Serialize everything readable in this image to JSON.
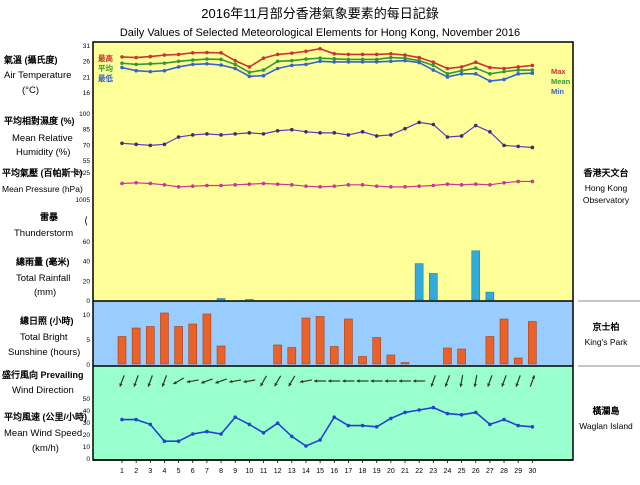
{
  "title_zh": "2016年11月部分香港氣象要素的每日記錄",
  "title_en": "Daily Values of Selected Meteorological Elements for Hong Kong, November 2016",
  "days": [
    1,
    2,
    3,
    4,
    5,
    6,
    7,
    8,
    9,
    10,
    11,
    12,
    13,
    14,
    15,
    16,
    17,
    18,
    19,
    20,
    21,
    22,
    23,
    24,
    25,
    26,
    27,
    28,
    29,
    30
  ],
  "panels": {
    "temperature": {
      "label_zh": "氣溫 (攝氏度)",
      "label_en_1": "Air Temperature",
      "label_en_2": "(°C)",
      "ticks": [
        "31",
        "26",
        "21",
        "16"
      ],
      "legend_zh_max": "最高",
      "legend_zh_mean": "平均",
      "legend_zh_min": "最低",
      "legend_en_max": "Max",
      "legend_en_mean": "Mean",
      "legend_en_min": "Min"
    },
    "humidity": {
      "label_zh": "平均相對濕度 (%)",
      "label_en_1": "Mean Relative",
      "label_en_2": "Humidity (%)",
      "ticks": [
        "100",
        "85",
        "70",
        "55"
      ]
    },
    "pressure": {
      "label_zh": "平均氣壓 (百帕斯卡)",
      "label_en": "Mean Pressure (hPa)",
      "ticks": [
        "1025",
        "1005"
      ]
    },
    "thunderstorm": {
      "label_zh": "雷暴",
      "label_en": "Thunderstorm"
    },
    "rainfall": {
      "label_zh": "總雨量 (毫米)",
      "label_en_1": "Total Rainfall",
      "label_en_2": "(mm)",
      "ticks": [
        "60",
        "40",
        "20",
        "0"
      ]
    },
    "sunshine": {
      "label_zh": "總日照 (小時)",
      "label_en_1": "Total Bright",
      "label_en_2": "Sunshine  (hours)",
      "ticks": [
        "10",
        "5",
        "0"
      ]
    },
    "wind_dir": {
      "label_zh": "盛行風向 Prevailing",
      "label_en": "Wind Direction"
    },
    "wind_speed": {
      "label_zh": "平均風速 (公里/小時)",
      "label_en_1": "Mean Wind Speed",
      "label_en_2": "(km/h)",
      "ticks": [
        "50",
        "40",
        "30",
        "20",
        "10",
        "0"
      ]
    }
  },
  "stations": {
    "hko_zh": "香港天文台",
    "hko_en_1": "Hong Kong",
    "hko_en_2": "Observatory",
    "kp_zh": "京士柏",
    "kp_en": "King's Park",
    "wi_zh": "橫瀾島",
    "wi_en": "Waglan Island"
  },
  "colors": {
    "upper_bg": "#ffff99",
    "sunshine_bg": "#99ccff",
    "wind_bg": "#99ffcc",
    "max_line": "#cc3333",
    "mean_line": "#339933",
    "min_line": "#3366cc",
    "humidity_line": "#6633cc",
    "pressure_line": "#cc3399",
    "rain_bar": "#33aadd",
    "sun_bar": "#e8622a",
    "wind_speed_line": "#2244cc"
  },
  "chart_data": [
    {
      "type": "line",
      "title": "Air Temperature (°C)",
      "x": [
        1,
        2,
        3,
        4,
        5,
        6,
        7,
        8,
        9,
        10,
        11,
        12,
        13,
        14,
        15,
        16,
        17,
        18,
        19,
        20,
        21,
        22,
        23,
        24,
        25,
        26,
        27,
        28,
        29,
        30
      ],
      "ylim": [
        16,
        31
      ],
      "series": [
        {
          "name": "Max",
          "values": [
            27.2,
            27.0,
            27.3,
            27.8,
            28.0,
            28.5,
            28.6,
            28.5,
            26.0,
            24.0,
            26.8,
            28.0,
            28.4,
            29.0,
            29.8,
            28.2,
            28.0,
            28.0,
            28.0,
            28.2,
            27.8,
            27.0,
            25.5,
            23.5,
            24.0,
            25.5,
            23.8,
            23.5,
            24.0,
            24.5
          ]
        },
        {
          "name": "Mean",
          "values": [
            25.2,
            24.8,
            25.0,
            25.2,
            25.8,
            26.2,
            26.5,
            26.4,
            24.8,
            22.3,
            23.0,
            25.8,
            26.0,
            26.5,
            26.8,
            26.6,
            26.4,
            26.4,
            26.4,
            27.0,
            26.8,
            26.0,
            24.5,
            21.8,
            22.8,
            23.6,
            21.8,
            22.5,
            23.0,
            23.0
          ]
        },
        {
          "name": "Min",
          "values": [
            23.8,
            22.8,
            22.5,
            22.8,
            24.0,
            24.8,
            25.0,
            24.6,
            23.5,
            21.0,
            21.2,
            23.5,
            24.5,
            24.8,
            25.8,
            25.6,
            25.6,
            25.6,
            25.6,
            25.8,
            26.0,
            25.4,
            23.0,
            20.8,
            21.8,
            21.8,
            19.5,
            20.0,
            21.8,
            22.0
          ]
        }
      ]
    },
    {
      "type": "line",
      "title": "Mean Relative Humidity (%)",
      "x": [
        1,
        2,
        3,
        4,
        5,
        6,
        7,
        8,
        9,
        10,
        11,
        12,
        13,
        14,
        15,
        16,
        17,
        18,
        19,
        20,
        21,
        22,
        23,
        24,
        25,
        26,
        27,
        28,
        29,
        30
      ],
      "ylim": [
        55,
        100
      ],
      "series": [
        {
          "name": "Humidity",
          "values": [
            71,
            70,
            69,
            70,
            77,
            79,
            80,
            79,
            80,
            81,
            80,
            83,
            84,
            82,
            81,
            81,
            79,
            82,
            78,
            79,
            85,
            91,
            89,
            77,
            78,
            88,
            82,
            69,
            68,
            67
          ]
        }
      ]
    },
    {
      "type": "line",
      "title": "Mean Pressure (hPa)",
      "x": [
        1,
        2,
        3,
        4,
        5,
        6,
        7,
        8,
        9,
        10,
        11,
        12,
        13,
        14,
        15,
        16,
        17,
        18,
        19,
        20,
        21,
        22,
        23,
        24,
        25,
        26,
        27,
        28,
        29,
        30
      ],
      "ylim": [
        1005,
        1025
      ],
      "series": [
        {
          "name": "Pressure",
          "values": [
            1016.5,
            1017.0,
            1016.5,
            1015.5,
            1014.0,
            1014.5,
            1015.0,
            1015.0,
            1015.5,
            1016.0,
            1016.5,
            1016.0,
            1015.5,
            1014.5,
            1014.0,
            1014.5,
            1015.5,
            1015.5,
            1014.5,
            1014.0,
            1014.0,
            1014.5,
            1015.0,
            1016.0,
            1015.5,
            1016.0,
            1015.5,
            1017.0,
            1018.0,
            1018.0
          ]
        }
      ]
    },
    {
      "type": "bar",
      "title": "Total Rainfall (mm)",
      "x": [
        1,
        2,
        3,
        4,
        5,
        6,
        7,
        8,
        9,
        10,
        11,
        12,
        13,
        14,
        15,
        16,
        17,
        18,
        19,
        20,
        21,
        22,
        23,
        24,
        25,
        26,
        27,
        28,
        29,
        30
      ],
      "ylim": [
        0,
        60
      ],
      "values": [
        0,
        0,
        0,
        0,
        0,
        0,
        0,
        1.5,
        0,
        0.5,
        0,
        0,
        0,
        0,
        0,
        0,
        0,
        0,
        0,
        0,
        0,
        37,
        27,
        0,
        0,
        50,
        8,
        0,
        0,
        0
      ]
    },
    {
      "type": "bar",
      "title": "Total Bright Sunshine (hours)",
      "x": [
        1,
        2,
        3,
        4,
        5,
        6,
        7,
        8,
        9,
        10,
        11,
        12,
        13,
        14,
        15,
        16,
        17,
        18,
        19,
        20,
        21,
        22,
        23,
        24,
        25,
        26,
        27,
        28,
        29,
        30
      ],
      "ylim": [
        0,
        12
      ],
      "values": [
        5.5,
        7.2,
        7.5,
        10.2,
        7.5,
        8.0,
        10.0,
        3.6,
        0,
        0,
        0,
        3.8,
        3.3,
        9.2,
        9.5,
        3.5,
        9.0,
        1.5,
        5.3,
        1.8,
        0.3,
        0,
        0,
        3.2,
        3.0,
        0,
        5.5,
        9.0,
        1.2,
        8.5
      ]
    },
    {
      "type": "line",
      "title": "Mean Wind Speed (km/h)",
      "x": [
        1,
        2,
        3,
        4,
        5,
        6,
        7,
        8,
        9,
        10,
        11,
        12,
        13,
        14,
        15,
        16,
        17,
        18,
        19,
        20,
        21,
        22,
        23,
        24,
        25,
        26,
        27,
        28,
        29,
        30
      ],
      "ylim": [
        0,
        55
      ],
      "series": [
        {
          "name": "Wind Speed",
          "values": [
            32,
            32,
            28,
            14,
            14,
            20,
            22,
            20,
            34,
            28,
            21,
            29,
            18,
            10,
            15,
            34,
            27,
            27,
            26,
            33,
            38,
            40,
            42,
            37,
            36,
            38,
            28,
            32,
            27,
            26
          ]
        }
      ]
    }
  ],
  "wind_directions_deg": [
    20,
    20,
    20,
    20,
    60,
    80,
    70,
    70,
    80,
    80,
    30,
    30,
    30,
    80,
    90,
    90,
    90,
    90,
    90,
    90,
    90,
    90,
    20,
    20,
    10,
    10,
    20,
    20,
    20,
    200
  ]
}
